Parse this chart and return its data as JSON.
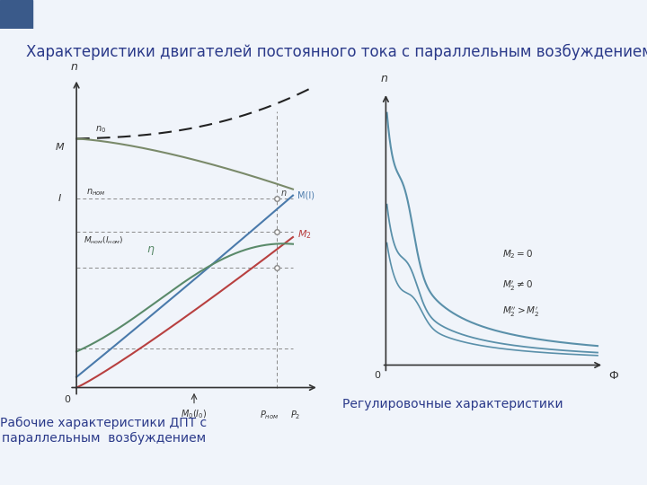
{
  "title": "Характеристики двигателей постоянного тока с параллельным возбуждением",
  "title_color": "#2B3A8A",
  "title_fontsize": 12,
  "subtitle_left": "Рабочие характеристики ДПТ с\nпараллельным  возбуждением",
  "subtitle_right": "Регулировочные характеристики",
  "subtitle_color": "#2B3A8A",
  "subtitle_fontsize": 10,
  "bg_color": "#F0F4FA",
  "plot_bg": "#F5F5F5",
  "header_strip_color": "#8BA8CC",
  "header_square_color": "#3A5A8A",
  "left_chart": {
    "dashed_color": "#888888",
    "n_line_color": "#7A8A6A",
    "MI_color": "#4A7AAB",
    "M2_color": "#B84040",
    "eta_color": "#5A8A6A"
  },
  "right_chart": {
    "curve_color": "#5A90AA"
  }
}
